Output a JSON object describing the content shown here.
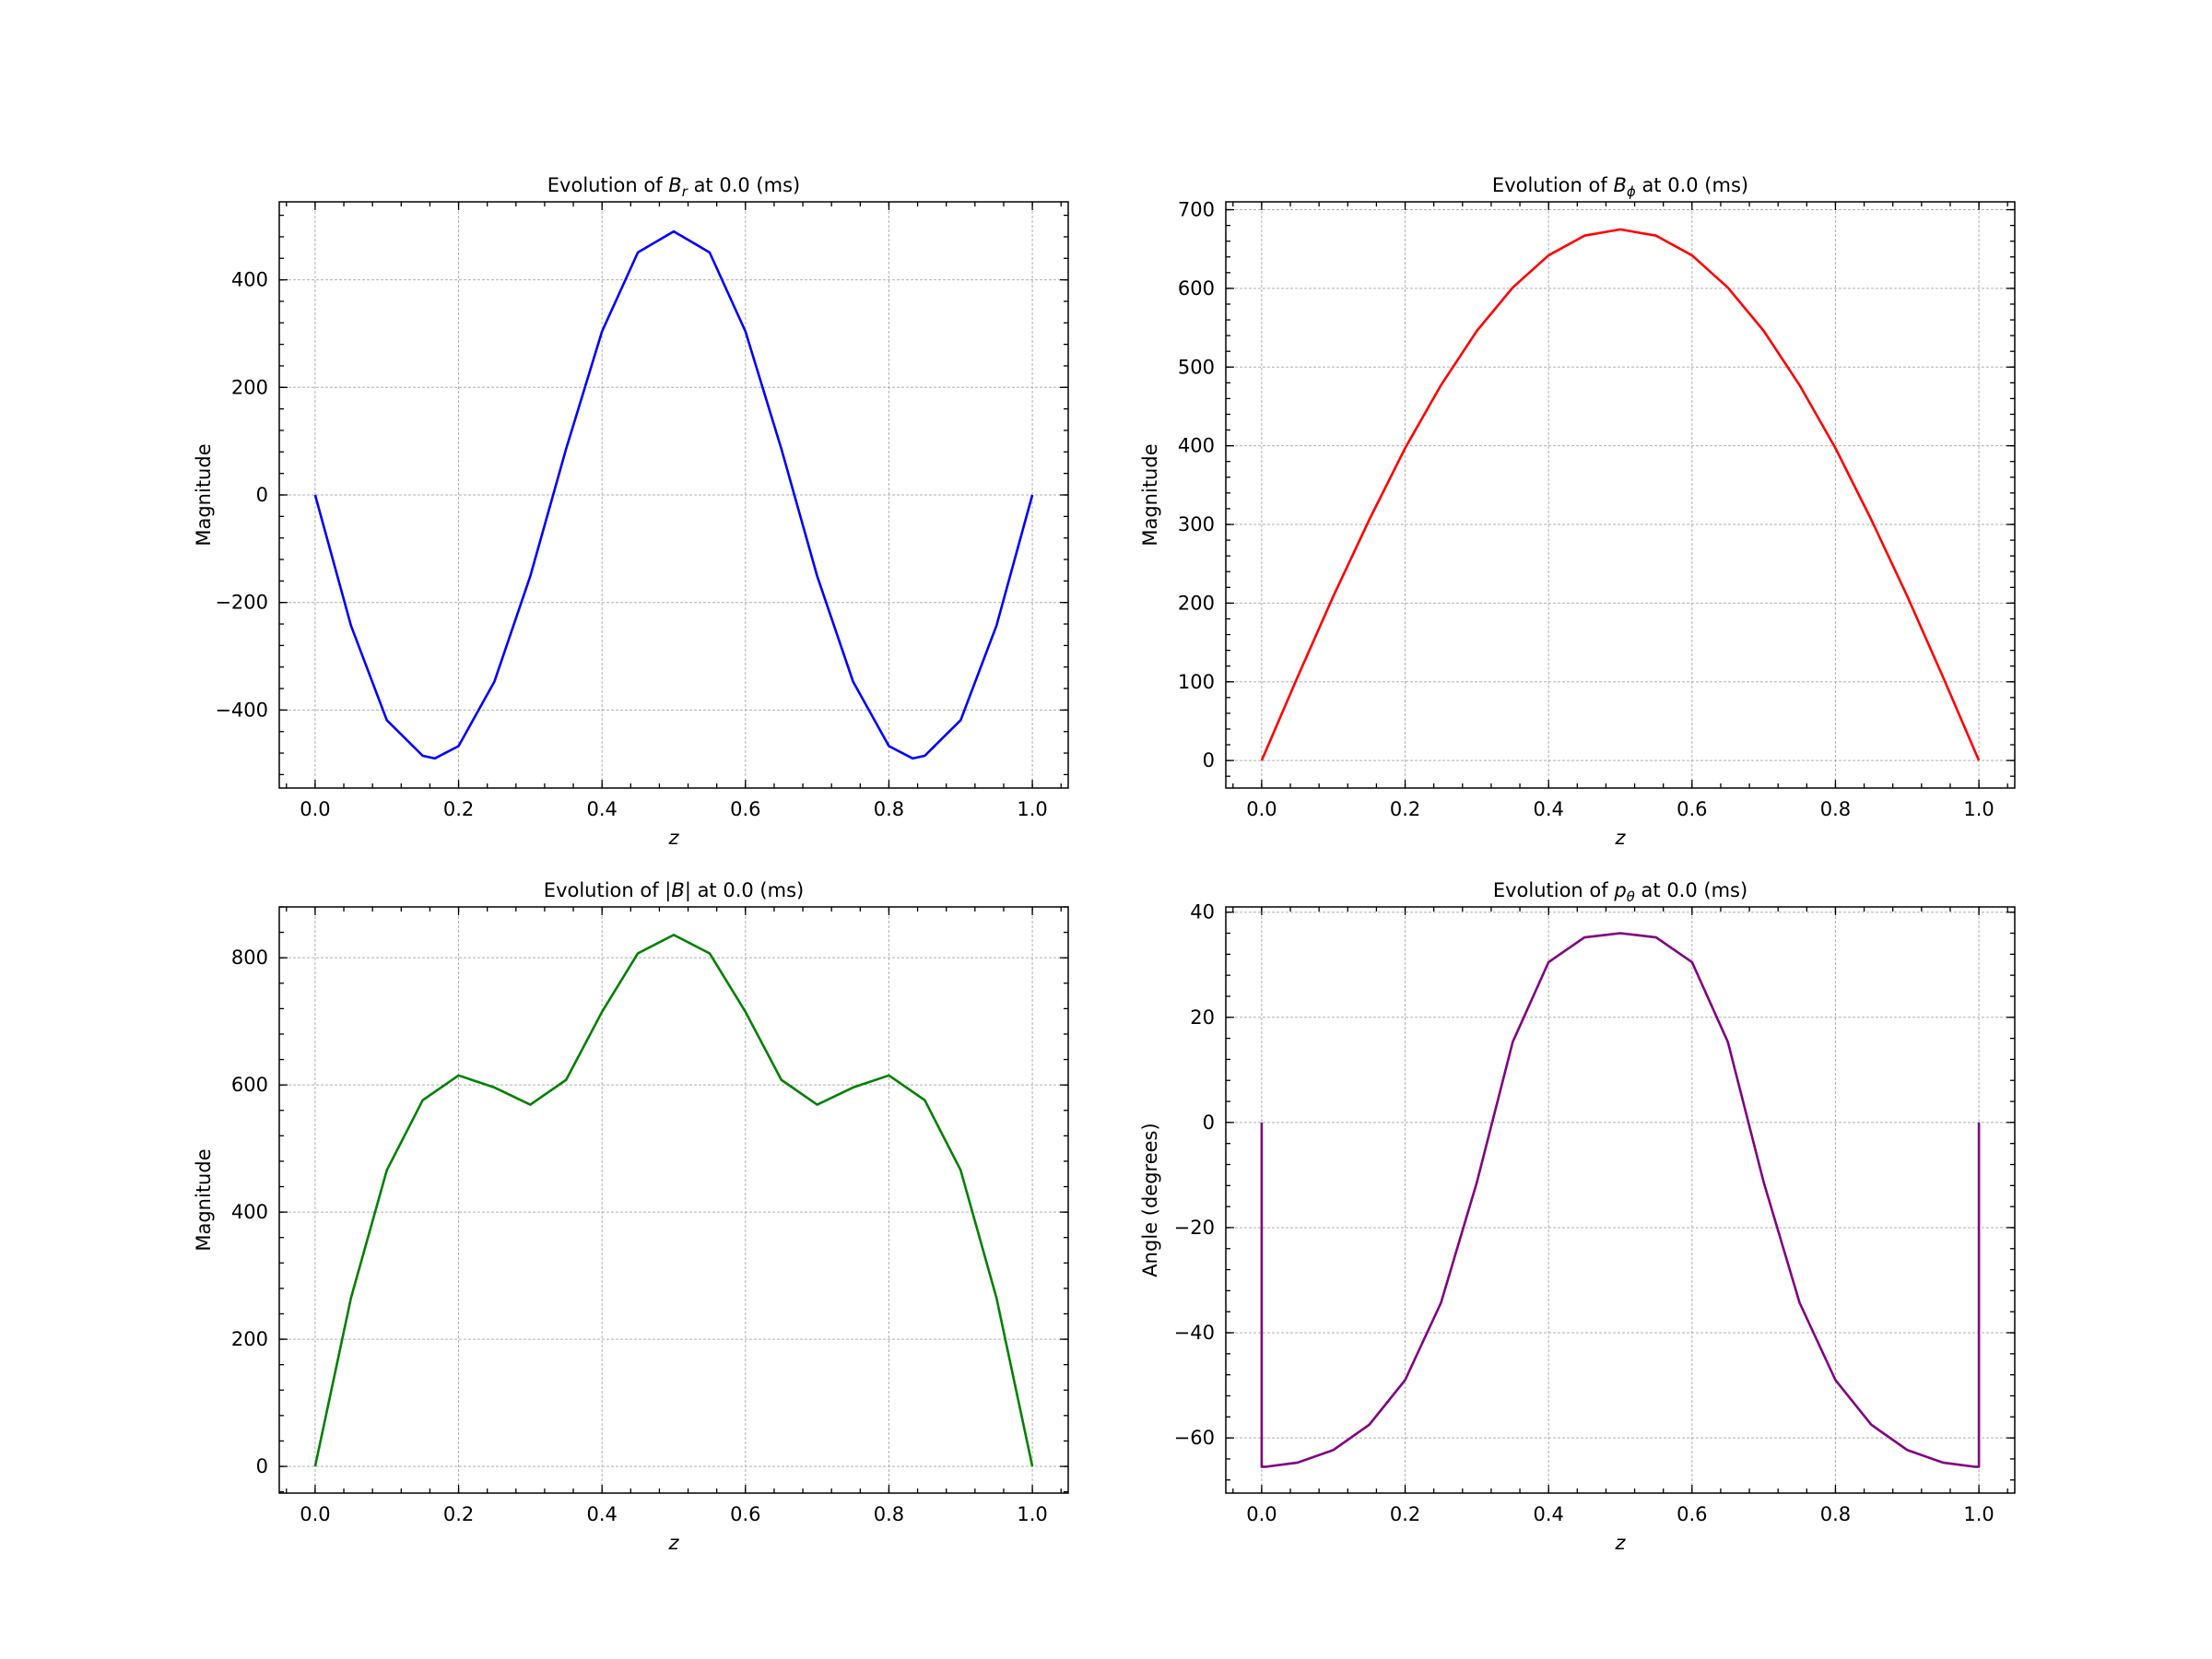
{
  "figure": {
    "background": "#ffffff"
  },
  "chart_data": [
    {
      "type": "line",
      "title_prefix": "Evolution of ",
      "title_symbol": "B",
      "title_subscript": "r",
      "title_suffix": " at 0.0 (ms)",
      "xlabel": "z",
      "ylabel": "Magnitude",
      "xlim": [
        -0.05,
        1.05
      ],
      "ylim": [
        -545,
        545
      ],
      "xticks": [
        0.0,
        0.2,
        0.4,
        0.6,
        0.8,
        1.0
      ],
      "xtick_labels": [
        "0.0",
        "0.2",
        "0.4",
        "0.6",
        "0.8",
        "1.0"
      ],
      "yticks": [
        -400,
        -200,
        0,
        200,
        400
      ],
      "ytick_labels": [
        "−400",
        "−200",
        "0",
        "200",
        "400"
      ],
      "grid": true,
      "color": "#0000ff",
      "x": [
        0,
        0.05,
        0.1,
        0.15,
        0.1667,
        0.2,
        0.25,
        0.3,
        0.35,
        0.4,
        0.45,
        0.5,
        0.55,
        0.6,
        0.65,
        0.7,
        0.75,
        0.8,
        0.8333,
        0.85,
        0.9,
        0.95,
        1.0
      ],
      "y": [
        0,
        -243,
        -419,
        -485,
        -490,
        -467,
        -347,
        -151,
        86,
        304,
        451,
        490,
        451,
        304,
        86,
        -151,
        -347,
        -467,
        -490,
        -485,
        -419,
        -243,
        0
      ]
    },
    {
      "type": "line",
      "title_prefix": "Evolution of ",
      "title_symbol": "B",
      "title_subscript": "ϕ",
      "title_suffix": " at 0.0 (ms)",
      "xlabel": "z",
      "ylabel": "Magnitude",
      "xlim": [
        -0.05,
        1.05
      ],
      "ylim": [
        -35,
        710
      ],
      "xticks": [
        0.0,
        0.2,
        0.4,
        0.6,
        0.8,
        1.0
      ],
      "xtick_labels": [
        "0.0",
        "0.2",
        "0.4",
        "0.6",
        "0.8",
        "1.0"
      ],
      "yticks": [
        0,
        100,
        200,
        300,
        400,
        500,
        600,
        700
      ],
      "ytick_labels": [
        "0",
        "100",
        "200",
        "300",
        "400",
        "500",
        "600",
        "700"
      ],
      "grid": true,
      "color": "#ff0000",
      "x": [
        0,
        0.05,
        0.1,
        0.15,
        0.2,
        0.25,
        0.3,
        0.35,
        0.4,
        0.45,
        0.5,
        0.55,
        0.6,
        0.65,
        0.7,
        0.75,
        0.8,
        0.85,
        0.9,
        0.95,
        1.0
      ],
      "y": [
        0,
        106,
        209,
        306,
        397,
        477,
        546,
        601,
        642,
        667,
        675,
        667,
        642,
        601,
        546,
        477,
        397,
        306,
        209,
        106,
        0
      ]
    },
    {
      "type": "line",
      "title_prefix": "Evolution of |",
      "title_symbol": "B",
      "title_subscript": "",
      "title_suffix": "| at 0.0 (ms)",
      "xlabel": "z",
      "ylabel": "Magnitude",
      "xlim": [
        -0.05,
        1.05
      ],
      "ylim": [
        -42,
        880
      ],
      "xticks": [
        0.0,
        0.2,
        0.4,
        0.6,
        0.8,
        1.0
      ],
      "xtick_labels": [
        "0.0",
        "0.2",
        "0.4",
        "0.6",
        "0.8",
        "1.0"
      ],
      "yticks": [
        0,
        200,
        400,
        600,
        800
      ],
      "ytick_labels": [
        "0",
        "200",
        "400",
        "600",
        "800"
      ],
      "grid": true,
      "color": "#008000",
      "x": [
        0,
        0.05,
        0.1,
        0.15,
        0.2,
        0.25,
        0.3,
        0.35,
        0.4,
        0.45,
        0.5,
        0.55,
        0.6,
        0.65,
        0.7,
        0.75,
        0.8,
        0.85,
        0.9,
        0.95,
        1.0
      ],
      "y": [
        0,
        265,
        466,
        576,
        615,
        596,
        569,
        608,
        715,
        807,
        836,
        807,
        715,
        608,
        569,
        596,
        615,
        576,
        466,
        265,
        0
      ]
    },
    {
      "type": "line",
      "title_prefix": "Evolution of ",
      "title_symbol": "p",
      "title_subscript": "θ",
      "title_suffix": " at 0.0 (ms)",
      "xlabel": "z",
      "ylabel": "Angle (degrees)",
      "xlim": [
        -0.05,
        1.05
      ],
      "ylim": [
        -70.5,
        41
      ],
      "xticks": [
        0.0,
        0.2,
        0.4,
        0.6,
        0.8,
        1.0
      ],
      "xtick_labels": [
        "0.0",
        "0.2",
        "0.4",
        "0.6",
        "0.8",
        "1.0"
      ],
      "yticks": [
        -60,
        -40,
        -20,
        0,
        20,
        40
      ],
      "ytick_labels": [
        "−60",
        "−40",
        "−20",
        "0",
        "20",
        "40"
      ],
      "grid": true,
      "color": "#800080",
      "x": [
        0,
        0,
        0.005,
        0.05,
        0.1,
        0.15,
        0.2,
        0.25,
        0.3,
        0.35,
        0.4,
        0.45,
        0.5,
        0.55,
        0.6,
        0.65,
        0.7,
        0.75,
        0.8,
        0.85,
        0.9,
        0.95,
        0.995,
        1.0,
        1.0
      ],
      "y": [
        0,
        -65.5,
        -65.5,
        -64.7,
        -62.3,
        -57.5,
        -49,
        -34.3,
        -11.4,
        15.3,
        30.5,
        35.2,
        36.0,
        35.2,
        30.5,
        15.3,
        -11.4,
        -34.3,
        -49,
        -57.5,
        -62.3,
        -64.7,
        -65.5,
        -65.5,
        0
      ]
    }
  ]
}
